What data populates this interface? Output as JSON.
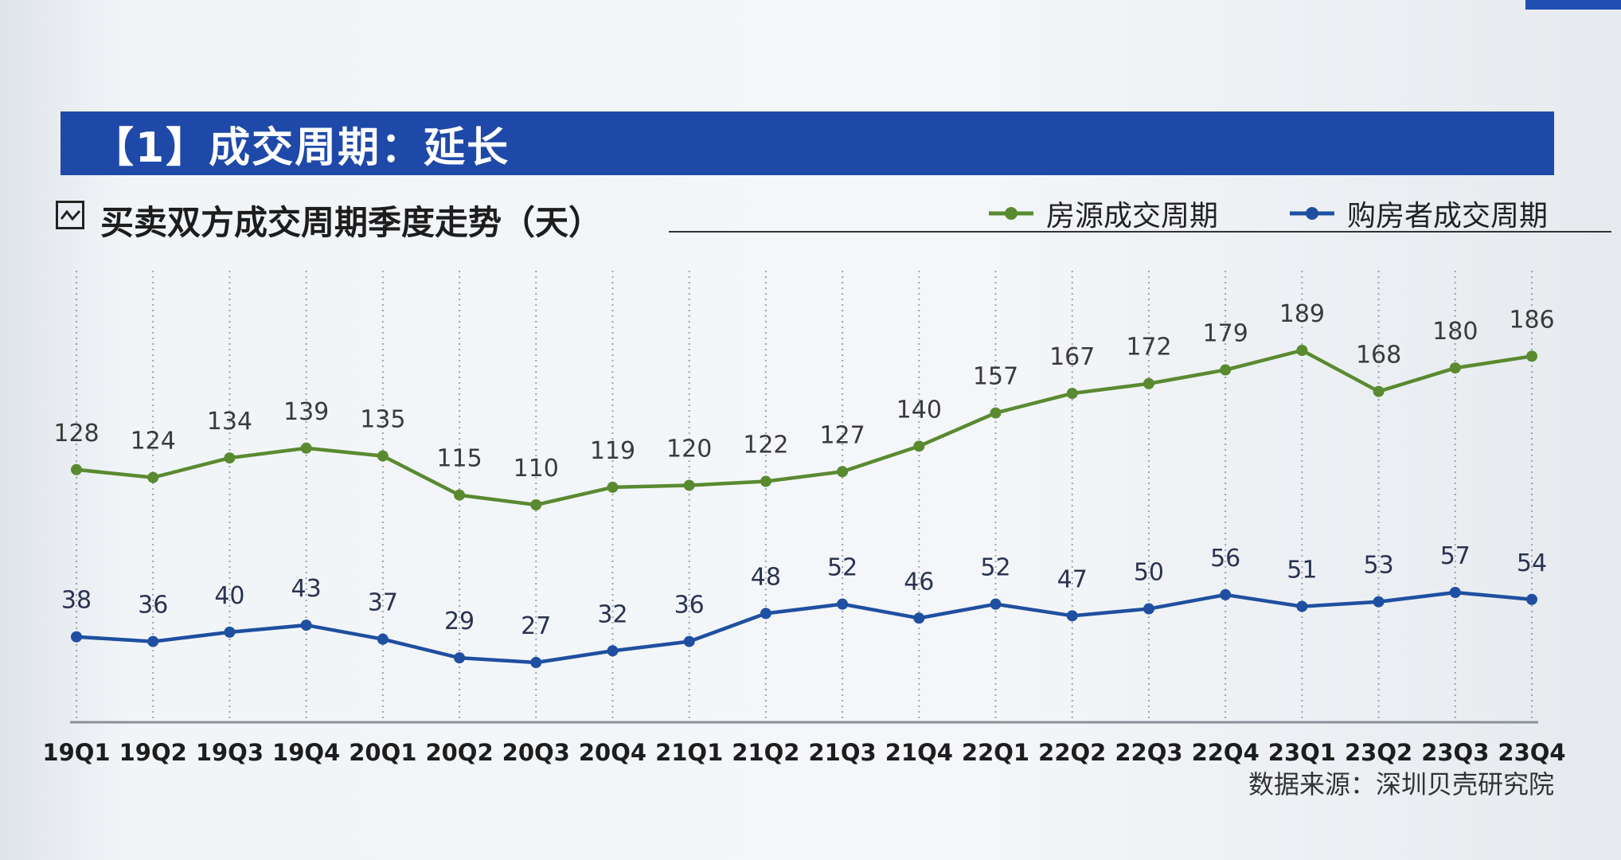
{
  "header": {
    "title": "【1】成交周期：延长",
    "subtitle": "买卖双方成交周期季度走势（天）"
  },
  "legend": {
    "supply_label": "房源成交周期",
    "buyer_label": "购房者成交周期"
  },
  "colors": {
    "title_bar": "#1f49a8",
    "supply_series": "#5a8a30",
    "buyer_series": "#1f4fa0",
    "gridline": "#9aa3ad"
  },
  "source": "数据来源：深圳贝壳研究院",
  "chart_data": {
    "type": "line",
    "title": "买卖双方成交周期季度走势（天）",
    "xlabel": "",
    "ylabel": "",
    "ylim": [
      0,
      220
    ],
    "grid": "vertical dotted",
    "legend_position": "top-right",
    "categories": [
      "19Q1",
      "19Q2",
      "19Q3",
      "19Q4",
      "20Q1",
      "20Q2",
      "20Q3",
      "20Q4",
      "21Q1",
      "21Q2",
      "21Q3",
      "21Q4",
      "22Q1",
      "22Q2",
      "22Q3",
      "22Q4",
      "23Q1",
      "23Q2",
      "23Q3",
      "23Q4"
    ],
    "series": [
      {
        "name": "房源成交周期",
        "values": [
          128,
          124,
          134,
          139,
          135,
          115,
          110,
          119,
          120,
          122,
          127,
          140,
          157,
          167,
          172,
          179,
          189,
          168,
          180,
          186
        ]
      },
      {
        "name": "购房者成交周期",
        "values": [
          38,
          36,
          40,
          43,
          37,
          29,
          27,
          32,
          36,
          48,
          52,
          46,
          52,
          47,
          50,
          56,
          51,
          53,
          57,
          54
        ]
      }
    ]
  }
}
